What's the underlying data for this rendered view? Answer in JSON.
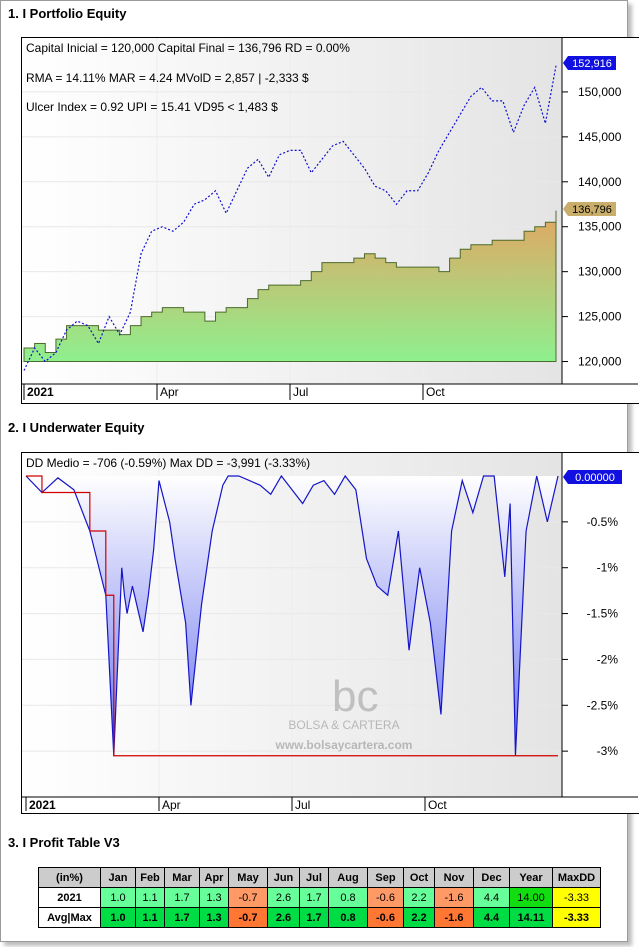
{
  "sections": {
    "equity_title": "1. I Portfolio Equity",
    "underwater_title": "2. I Underwater Equity",
    "profit_title": "3. I Profit Table V3"
  },
  "equity": {
    "info_line1": "Capital Inicial = 120,000  Capital Final = 136,796  RD = 0.00%",
    "info_line2": "RMA = 14.11%  MAR = 4.24  MVolD = 2,857 | -2,333 $",
    "info_line3": "Ulcer Index = 0.92  UPI = 15.41  VD95 < 1,483 $",
    "badge_blue": "152,916",
    "badge_final": "136,796",
    "colors": {
      "blue_series": "#1010d0",
      "badge_blue": "#1010e0",
      "badge_final": "#c9ad6a",
      "fill_top": "#e3a562",
      "fill_bottom": "#8ef08e"
    }
  },
  "underwater": {
    "info": "DD Medio = -706 (-0.59%)      Max DD = -3,991 (-3.33%)",
    "badge": "0.00000",
    "watermark_name": "BOLSA & CARTERA",
    "watermark_url": "www.bolsaycartera.com",
    "colors": {
      "line": "#1515c8",
      "fill_top": "#ffffff",
      "fill_bottom": "#6a73ee",
      "maxdd_line": "#d00000"
    }
  },
  "chart_data": [
    {
      "type": "line",
      "title": "1. I Portfolio Equity",
      "x_tick_labels": [
        "2021",
        "Apr",
        "Jul",
        "Oct"
      ],
      "y_tick_labels": [
        "120,000",
        "125,000",
        "130,000",
        "135,000",
        "140,000",
        "145,000",
        "150,000"
      ],
      "ylim": [
        117500,
        156000
      ],
      "xlim": [
        0,
        1
      ],
      "series": [
        {
          "style": "dotted-blue",
          "x": [
            0,
            0.02,
            0.04,
            0.06,
            0.08,
            0.1,
            0.12,
            0.14,
            0.16,
            0.18,
            0.2,
            0.22,
            0.24,
            0.26,
            0.28,
            0.3,
            0.32,
            0.34,
            0.36,
            0.38,
            0.4,
            0.42,
            0.44,
            0.46,
            0.48,
            0.5,
            0.52,
            0.54,
            0.56,
            0.58,
            0.6,
            0.62,
            0.64,
            0.66,
            0.68,
            0.7,
            0.72,
            0.74,
            0.76,
            0.78,
            0.8,
            0.82,
            0.84,
            0.86,
            0.88,
            0.9,
            0.92,
            0.94,
            0.96,
            0.98,
            1.0
          ],
          "values": [
            119000,
            121500,
            120000,
            121000,
            123500,
            124500,
            124000,
            122000,
            125000,
            123000,
            125500,
            132000,
            134500,
            135000,
            134500,
            135500,
            137500,
            138000,
            139000,
            136500,
            139000,
            141500,
            142500,
            140500,
            143000,
            143500,
            143500,
            141000,
            142500,
            144000,
            144500,
            143000,
            141500,
            139500,
            139000,
            137500,
            139000,
            139000,
            141000,
            143500,
            145500,
            147500,
            149500,
            150500,
            149000,
            149000,
            145500,
            148500,
            150500,
            146500,
            152916
          ]
        },
        {
          "style": "gradient-area",
          "x": [
            0,
            0.02,
            0.04,
            0.06,
            0.08,
            0.1,
            0.12,
            0.14,
            0.16,
            0.18,
            0.2,
            0.22,
            0.24,
            0.26,
            0.28,
            0.3,
            0.32,
            0.34,
            0.36,
            0.38,
            0.4,
            0.42,
            0.44,
            0.46,
            0.48,
            0.5,
            0.52,
            0.54,
            0.56,
            0.58,
            0.6,
            0.62,
            0.64,
            0.66,
            0.68,
            0.7,
            0.72,
            0.74,
            0.76,
            0.78,
            0.8,
            0.82,
            0.84,
            0.86,
            0.88,
            0.9,
            0.92,
            0.94,
            0.96,
            0.98,
            1.0
          ],
          "values": [
            121500,
            122000,
            121000,
            122500,
            124000,
            124000,
            124000,
            123500,
            123500,
            123000,
            124000,
            125000,
            125500,
            126000,
            126000,
            125500,
            125500,
            124500,
            125500,
            126000,
            126000,
            127000,
            128000,
            128500,
            128500,
            128500,
            129000,
            130000,
            131000,
            131000,
            131000,
            131500,
            132000,
            131500,
            131000,
            130500,
            130500,
            130500,
            130500,
            130000,
            131500,
            132500,
            133000,
            133000,
            133500,
            133500,
            133500,
            134500,
            135000,
            135500,
            136796
          ]
        }
      ]
    },
    {
      "type": "area",
      "title": "2. I Underwater Equity",
      "x_tick_labels": [
        "2021",
        "Apr",
        "Jul",
        "Oct"
      ],
      "y_tick_labels": [
        "-0.5%",
        "-1%",
        "-1.5%",
        "-2%",
        "-2.5%",
        "-3%"
      ],
      "ylim": [
        -3.5,
        0.05
      ],
      "xlim": [
        0,
        1
      ],
      "series": [
        {
          "style": "underwater",
          "x": [
            0,
            0.03,
            0.06,
            0.09,
            0.12,
            0.15,
            0.165,
            0.18,
            0.185,
            0.19,
            0.2,
            0.22,
            0.23,
            0.24,
            0.25,
            0.27,
            0.28,
            0.3,
            0.31,
            0.33,
            0.35,
            0.37,
            0.38,
            0.4,
            0.42,
            0.44,
            0.46,
            0.48,
            0.5,
            0.52,
            0.54,
            0.56,
            0.58,
            0.6,
            0.62,
            0.64,
            0.66,
            0.68,
            0.7,
            0.72,
            0.74,
            0.76,
            0.78,
            0.8,
            0.82,
            0.84,
            0.86,
            0.88,
            0.9,
            0.91,
            0.92,
            0.94,
            0.96,
            0.98,
            1.0
          ],
          "values": [
            0,
            -0.18,
            -0.02,
            -0.15,
            -0.6,
            -1.3,
            -3.05,
            -1.0,
            -1.3,
            -1.5,
            -1.2,
            -1.7,
            -1.3,
            -0.8,
            -0.05,
            -0.5,
            -0.9,
            -1.6,
            -2.5,
            -1.4,
            -0.6,
            -0.1,
            0,
            0,
            -0.05,
            -0.1,
            -0.2,
            0,
            -0.15,
            -0.3,
            -0.1,
            -0.05,
            -0.2,
            0,
            -0.15,
            -0.9,
            -1.2,
            -1.3,
            -0.6,
            -1.9,
            -1.0,
            -1.6,
            -2.6,
            -0.6,
            -0.05,
            -0.4,
            0,
            0,
            -1.1,
            -0.3,
            -3.05,
            -0.6,
            0,
            -0.5,
            0
          ]
        }
      ],
      "max_dd_percent": -3.33
    },
    {
      "type": "table",
      "title": "3. I Profit Table V3",
      "columns": [
        "(in%)",
        "Jan",
        "Feb",
        "Mar",
        "Apr",
        "May",
        "Jun",
        "Jul",
        "Aug",
        "Sep",
        "Oct",
        "Nov",
        "Dec",
        "Year",
        "MaxDD"
      ],
      "rows": [
        {
          "label": "2021",
          "cells": [
            "1.0",
            "1.1",
            "1.7",
            "1.3",
            "-0.7",
            "2.6",
            "1.7",
            "0.8",
            "-0.6",
            "2.2",
            "-1.6",
            "4.4",
            "14.00",
            "-3.33"
          ]
        },
        {
          "label": "Avg|Max",
          "cells": [
            "1.0",
            "1.1",
            "1.7",
            "1.3",
            "-0.7",
            "2.6",
            "1.7",
            "0.8",
            "-0.6",
            "2.2",
            "-1.6",
            "4.4",
            "14.11",
            "-3.33"
          ]
        }
      ],
      "cell_colors": {
        "row1": [
          "#66ff99",
          "#66ff99",
          "#66ff99",
          "#66ff99",
          "#ff9966",
          "#66ff99",
          "#66ff99",
          "#66ff99",
          "#ff9966",
          "#66ff99",
          "#ff9966",
          "#66ff99",
          "#11dd11",
          "#ffff00"
        ],
        "row2": [
          "#00dd44",
          "#00dd44",
          "#00dd44",
          "#00dd44",
          "#ff7733",
          "#00dd44",
          "#00dd44",
          "#00dd44",
          "#ff7733",
          "#00dd44",
          "#ff7733",
          "#00dd44",
          "#00dd44",
          "#ffff00"
        ]
      }
    }
  ]
}
